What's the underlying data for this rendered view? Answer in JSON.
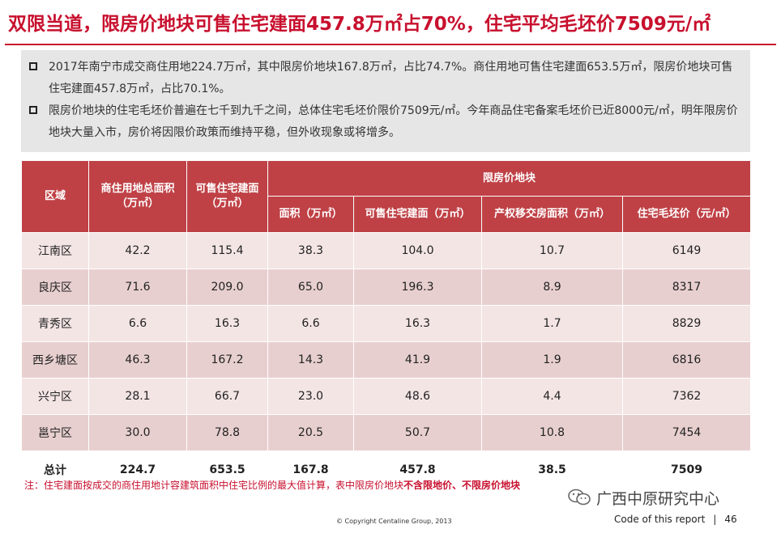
{
  "title": "双限当道，限房价地块可售住宅建面457.8万㎡占70%，住宅平均毛坯价7509元/㎡",
  "summary": {
    "bullets": [
      "2017年南宁市成交商住用地224.7万㎡，其中限房价地块167.8万㎡，占比74.7%。商住用地可售住宅建面653.5万㎡，限房价地块可售住宅建面457.8万㎡，占比70.1%。",
      "限房价地块的住宅毛坯价普遍在七千到九千之间，总体住宅毛坯价限价7509元/㎡。今年商品住宅备案毛坯价已近8000元/㎡，明年限房价地块大量入市，房价将因限价政策而维持平稳，但外收现象或将增多。"
    ]
  },
  "table": {
    "headers": {
      "district": "区域",
      "total_area": "商住用地总面积（万㎡）",
      "saleable": "可售住宅建面（万㎡）",
      "group": "限房价地块",
      "sub": [
        "面积（万㎡）",
        "可售住宅建面（万㎡）",
        "产权移交房面积（万㎡）",
        "住宅毛坯价（元/㎡）"
      ]
    },
    "rows": [
      [
        "江南区",
        "42.2",
        "115.4",
        "38.3",
        "104.0",
        "10.7",
        "6149"
      ],
      [
        "良庆区",
        "71.6",
        "209.0",
        "65.0",
        "196.3",
        "8.9",
        "8317"
      ],
      [
        "青秀区",
        "6.6",
        "16.3",
        "6.6",
        "16.3",
        "1.7",
        "8829"
      ],
      [
        "西乡塘区",
        "46.3",
        "167.2",
        "14.3",
        "41.9",
        "1.9",
        "6816"
      ],
      [
        "兴宁区",
        "28.1",
        "66.7",
        "23.0",
        "48.6",
        "4.4",
        "7362"
      ],
      [
        "邕宁区",
        "30.0",
        "78.8",
        "20.5",
        "50.7",
        "10.8",
        "7454"
      ]
    ],
    "total": [
      "总计",
      "224.7",
      "653.5",
      "167.8",
      "457.8",
      "38.5",
      "7509"
    ]
  },
  "note": {
    "prefix": "注：住宅建面按成交的商住用地计容建筑面积中住宅比例的最大值计算，表中限房价地块",
    "bold": "不含限地价、不限房价地块"
  },
  "watermark": "广西中原研究中心",
  "copyright": "© Copyright  Centaline Group, 2013",
  "footer": {
    "code_label": "Code of this report",
    "separator": "|",
    "page_number": "46"
  },
  "colors": {
    "accent": "#c8102e",
    "header_bg": "#bf4146",
    "row_light": "#f4e5e5",
    "row_dark": "#e8cfcf",
    "summary_bg": "#e6e6e6"
  }
}
